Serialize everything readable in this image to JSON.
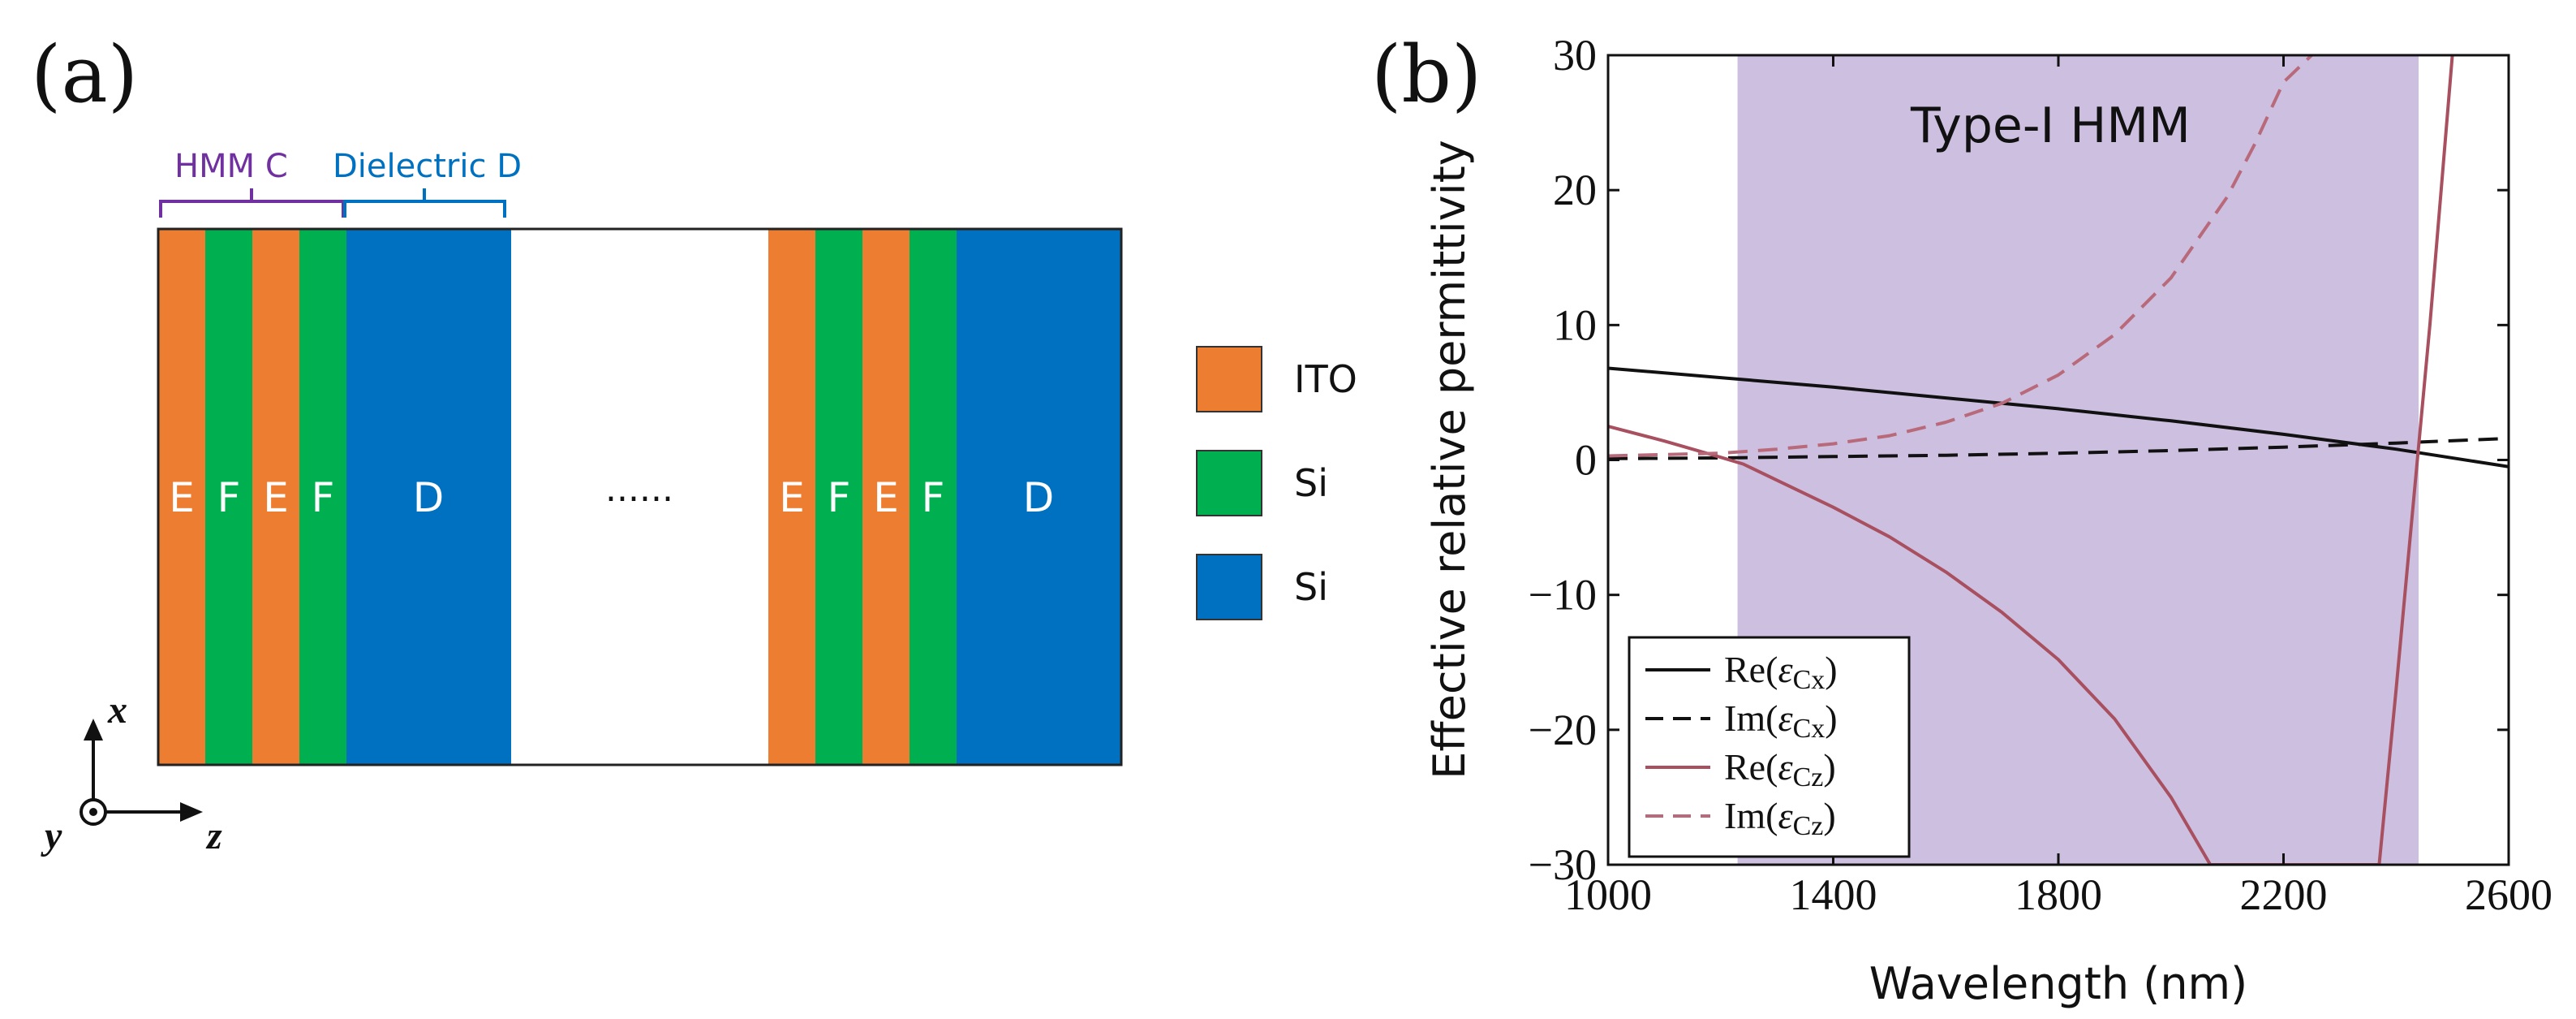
{
  "panel_a": {
    "label": "(a)",
    "brackets": {
      "hmm": "HMM C",
      "dielectric": "Dielectric D"
    },
    "layers_group1": [
      "E",
      "F",
      "E",
      "F"
    ],
    "layer_d1": "D",
    "ellipsis": "......",
    "layers_group2": [
      "E",
      "F",
      "E",
      "F"
    ],
    "layer_d2": "D",
    "legend": [
      {
        "label": "ITO",
        "color": "#ED7D31"
      },
      {
        "label": "Si",
        "color": "#00B050"
      },
      {
        "label": "Si",
        "color": "#0070C0"
      }
    ],
    "axes": {
      "x": "x",
      "y": "y",
      "z": "z"
    },
    "colors": {
      "E": "#ED7D31",
      "F": "#00B050",
      "D": "#0070C0"
    }
  },
  "panel_b": {
    "label": "(b)",
    "region_label": "Type-I HMM",
    "legend": [
      {
        "re_im": "Re",
        "sub": "Cx"
      },
      {
        "re_im": "Im",
        "sub": "Cx"
      },
      {
        "re_im": "Re",
        "sub": "Cz"
      },
      {
        "re_im": "Im",
        "sub": "Cz"
      }
    ]
  },
  "chart_data": {
    "type": "line",
    "title": "",
    "xlabel": "Wavelength (nm)",
    "ylabel": "Effective relative permittivity",
    "xlim": [
      1000,
      2600
    ],
    "ylim": [
      -30,
      30
    ],
    "xticks": [
      1000,
      1400,
      1800,
      2200,
      2600
    ],
    "yticks": [
      30,
      20,
      10,
      0,
      -10,
      -20,
      -30
    ],
    "ytick_labels": [
      "30",
      "20",
      "10",
      "0",
      "−10",
      "−20",
      "−30"
    ],
    "shaded_region": {
      "x": [
        1230,
        2440
      ],
      "label": "Type-I HMM",
      "color": "#CDBFE0"
    },
    "series": [
      {
        "name": "Re(εCx)",
        "color": "#111111",
        "dash": "solid",
        "x": [
          1000,
          1200,
          1400,
          1600,
          1800,
          2000,
          2200,
          2400,
          2600
        ],
        "y": [
          6.8,
          6.1,
          5.4,
          4.6,
          3.8,
          2.9,
          1.9,
          0.8,
          -0.5
        ]
      },
      {
        "name": "Im(εCx)",
        "color": "#111111",
        "dash": "dashed",
        "x": [
          1000,
          1200,
          1400,
          1600,
          1800,
          2000,
          2200,
          2400,
          2600
        ],
        "y": [
          0.1,
          0.15,
          0.25,
          0.35,
          0.5,
          0.7,
          0.95,
          1.25,
          1.6
        ]
      },
      {
        "name": "Re(εCz)",
        "color": "#A8505F",
        "dash": "solid",
        "x": [
          1000,
          1100,
          1200,
          1240,
          1300,
          1400,
          1500,
          1600,
          1700,
          1800,
          1900,
          2000,
          2070,
          2370,
          2400,
          2420,
          2440,
          2460,
          2480,
          2500
        ],
        "y": [
          2.5,
          1.4,
          0.2,
          -0.3,
          -1.5,
          -3.5,
          -5.7,
          -8.3,
          -11.3,
          -14.8,
          -19.2,
          -25.0,
          -30,
          -30,
          -17,
          -8,
          1,
          10,
          20,
          30
        ]
      },
      {
        "name": "Im(εCz)",
        "color": "#B86A7A",
        "dash": "dashed",
        "x": [
          1000,
          1200,
          1300,
          1400,
          1500,
          1600,
          1700,
          1800,
          1900,
          2000,
          2100,
          2150,
          2200,
          2250
        ],
        "y": [
          0.3,
          0.5,
          0.8,
          1.2,
          1.8,
          2.8,
          4.2,
          6.3,
          9.3,
          13.5,
          19.5,
          23.5,
          28.0,
          30
        ]
      }
    ]
  }
}
